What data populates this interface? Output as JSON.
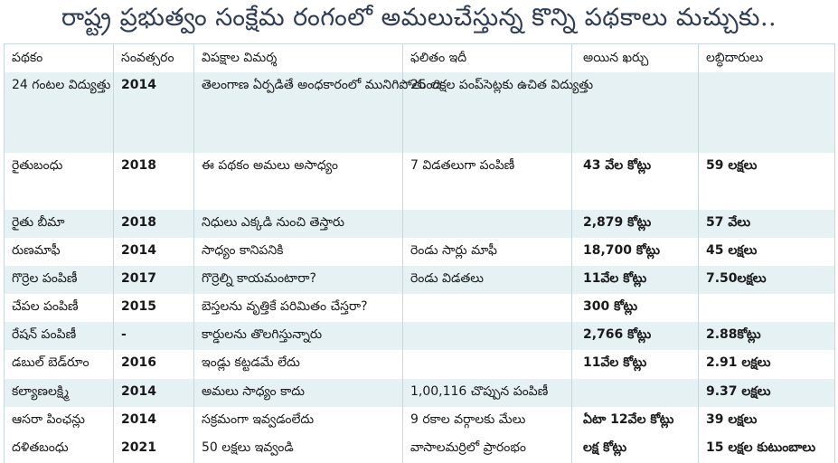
{
  "headline": "రాష్ట్ర ప్రభుత్వం సంక్షేమ రంగంలో అమలుచేస్తున్న కొన్ని పథకాలు మచ్చుకు..",
  "columns": [
    "పథకం",
    "సంవత్సరం",
    "విపక్షాల విమర్శ",
    "ఫలితం ఇదీ",
    "అయిన ఖర్చు",
    "లబ్ధిదారులు"
  ],
  "rows": [
    {
      "scheme": "24 గంటల విద్యుత్తు",
      "year": "2014",
      "criticism": "తెలంగాణ ఏర్పడితే అంధకారంలో మునిగిపోతుంది",
      "result": "25 లక్షల పంప్‌సెట్లకు ఉచిత విద్యుత్తు",
      "cost": "",
      "beneficiaries": ""
    },
    {
      "scheme": "రైతుబంధు",
      "year": "2018",
      "criticism": "ఈ పథకం అమలు అసాధ్యం",
      "result": "7 విడతలుగా పంపిణీ",
      "cost": "43 వేల కోట్లు",
      "beneficiaries": "59 లక్షలు"
    },
    {
      "scheme": "రైతు బీమా",
      "year": "2018",
      "criticism": "నిధులు ఎక్కడి నుంచి తెస్తారు",
      "result": "",
      "cost": "2,879 కోట్లు",
      "beneficiaries": "57 వేలు"
    },
    {
      "scheme": "రుణమాఫీ",
      "year": "2014",
      "criticism": "సాధ్యం కానిపనికి",
      "result": "రెండు సార్లు మాఫీ",
      "cost": "18,700 కోట్లు",
      "beneficiaries": "45 లక్షలు"
    },
    {
      "scheme": "గొర్రెల పంపిణీ",
      "year": "2017",
      "criticism": "గొర్రెల్ని కాయమంటారా?",
      "result": "రెండు విడతలు",
      "cost": "11వేల కోట్లు",
      "beneficiaries": "7.50లక్షలు"
    },
    {
      "scheme": "చేపల పంపిణీ",
      "year": "2015",
      "criticism": "బెస్తలను వృత్తికే పరిమితం చేస్తరా?",
      "result": "",
      "cost": "300 కోట్లు",
      "beneficiaries": ""
    },
    {
      "scheme": "రేషన్ పంపిణీ",
      "year": "-",
      "criticism": "కార్డులను తొలగిస్తున్నారు",
      "result": "",
      "cost": "2,766 కోట్లు",
      "beneficiaries": "2.88కోట్లు"
    },
    {
      "scheme": "డబుల్ బెడ్‌రూం",
      "year": "2016",
      "criticism": "ఇండ్లు కట్టడమే లేదు",
      "result": "",
      "cost": "11వేల కోట్లు",
      "beneficiaries": "2.91 లక్షలు"
    },
    {
      "scheme": "కల్యాణలక్ష్మి",
      "year": "2014",
      "criticism": "అమలు సాధ్యం కాదు",
      "result": "1,00,116 చొప్పున పంపిణీ",
      "cost": "",
      "beneficiaries": "9.37 లక్షలు"
    },
    {
      "scheme": "ఆసరా పింఛన్లు",
      "year": "2014",
      "criticism": "సక్రమంగా ఇవ్వడంలేదు",
      "result": "9 రకాల వర్గాలకు మేలు",
      "cost": "ఏటా 12వేల కోట్లు",
      "beneficiaries": "39 లక్షలు"
    },
    {
      "scheme": "దళితబంధు",
      "year": "2021",
      "criticism": "50 లక్షలు ఇవ్వండి",
      "result": "వాసాలమర్రిలో ప్రారంభం",
      "cost": "లక్ష కోట్లు",
      "beneficiaries": "15 లక్షల కుటుంబాలు"
    }
  ]
}
